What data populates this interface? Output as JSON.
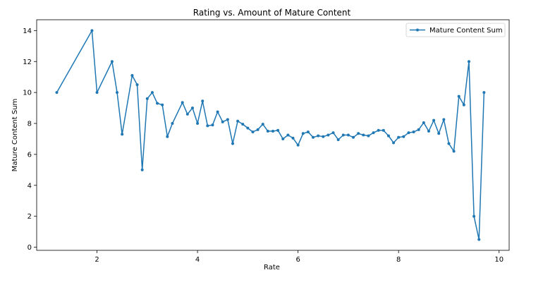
{
  "chart_data": {
    "type": "line",
    "title": "Rating vs. Amount of Mature Content",
    "xlabel": "Rate",
    "ylabel": "Mature Content Sum",
    "xlim": [
      0.8,
      10.2
    ],
    "ylim": [
      -0.2,
      14.7
    ],
    "xticks": [
      2,
      4,
      6,
      8,
      10
    ],
    "yticks": [
      0,
      2,
      4,
      6,
      8,
      10,
      12,
      14
    ],
    "grid": false,
    "legend_position": "top-right",
    "series": [
      {
        "name": "Mature Content Sum",
        "color": "#1f77b4",
        "marker": "circle",
        "x": [
          1.2,
          1.9,
          2.0,
          2.3,
          2.4,
          2.5,
          2.7,
          2.8,
          2.9,
          3.0,
          3.1,
          3.2,
          3.3,
          3.4,
          3.5,
          3.7,
          3.8,
          3.9,
          4.0,
          4.1,
          4.2,
          4.3,
          4.4,
          4.5,
          4.6,
          4.7,
          4.8,
          4.9,
          5.0,
          5.1,
          5.2,
          5.3,
          5.4,
          5.5,
          5.6,
          5.7,
          5.8,
          5.9,
          6.0,
          6.1,
          6.2,
          6.3,
          6.4,
          6.5,
          6.6,
          6.7,
          6.8,
          6.9,
          7.0,
          7.1,
          7.2,
          7.3,
          7.4,
          7.5,
          7.6,
          7.7,
          7.8,
          7.9,
          8.0,
          8.1,
          8.2,
          8.3,
          8.4,
          8.5,
          8.6,
          8.7,
          8.8,
          8.9,
          9.0,
          9.1,
          9.2,
          9.3,
          9.4,
          9.5,
          9.6,
          9.7
        ],
        "y": [
          10,
          14,
          10,
          12,
          10,
          7.3,
          11.1,
          10.5,
          5,
          9.6,
          10,
          9.3,
          9.2,
          7.15,
          8,
          9.35,
          8.6,
          9,
          8,
          9.45,
          7.85,
          7.9,
          8.75,
          8.1,
          8.25,
          6.7,
          8.15,
          7.95,
          7.7,
          7.45,
          7.6,
          7.95,
          7.5,
          7.5,
          7.55,
          7.0,
          7.25,
          7.05,
          6.6,
          7.35,
          7.45,
          7.1,
          7.2,
          7.15,
          7.25,
          7.4,
          6.95,
          7.25,
          7.25,
          7.1,
          7.35,
          7.25,
          7.2,
          7.4,
          7.55,
          7.55,
          7.2,
          6.75,
          7.1,
          7.15,
          7.4,
          7.45,
          7.6,
          8.05,
          7.5,
          8.2,
          7.35,
          8.25,
          6.7,
          6.2,
          9.75,
          9.2,
          12,
          2,
          0.5,
          10
        ]
      }
    ]
  }
}
